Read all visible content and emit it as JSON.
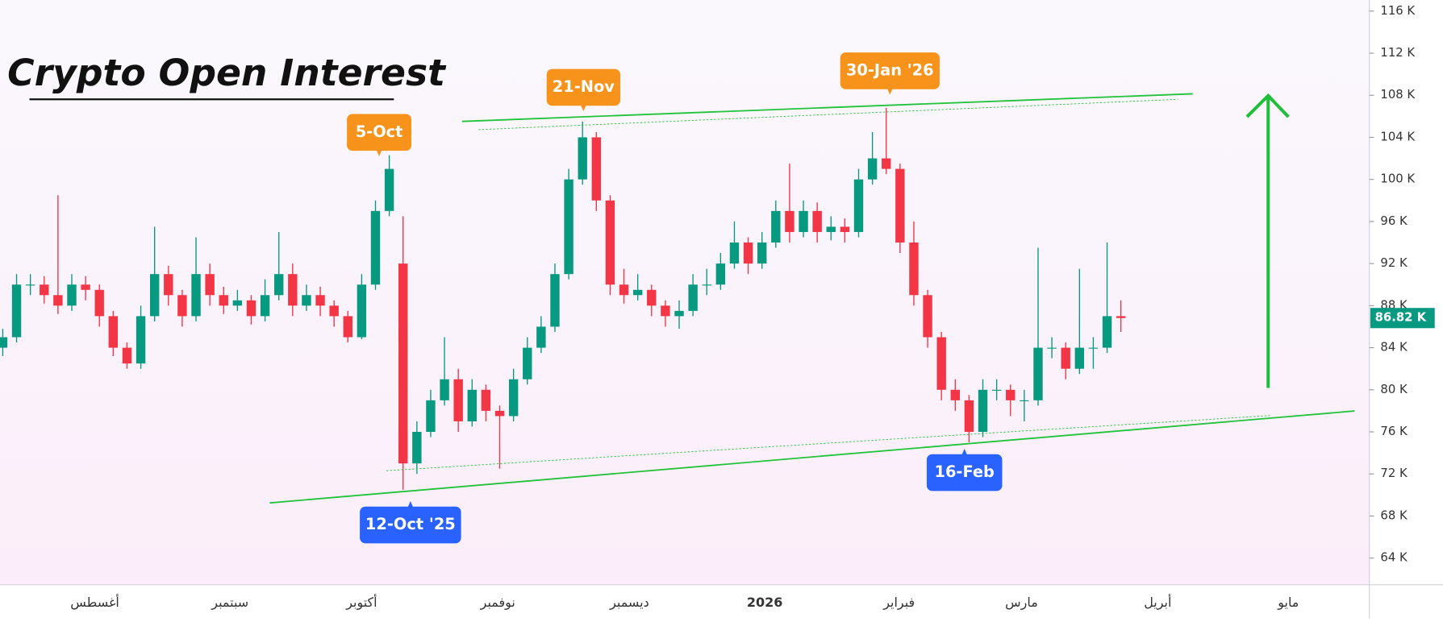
{
  "chart_data": {
    "type": "candlestick",
    "title": "Crypto Open Interest",
    "open": [
      84,
      85,
      90,
      90,
      89,
      88,
      90,
      89.5,
      87,
      84,
      82.5,
      87,
      91,
      89,
      87,
      91,
      89,
      88,
      88.5,
      87,
      89,
      91,
      88,
      89,
      88,
      87,
      85,
      90,
      97,
      92,
      73,
      76,
      79,
      81,
      77,
      80,
      78,
      77.5,
      81,
      84,
      86,
      91,
      100,
      104,
      98,
      90,
      89,
      89.5,
      88,
      87,
      87.5,
      90,
      90,
      92,
      94,
      92,
      94,
      97,
      95,
      97,
      95,
      95.5,
      95,
      100,
      102,
      101,
      94,
      89,
      85,
      80,
      79,
      76,
      80,
      80,
      79,
      79,
      84,
      84,
      82,
      84,
      84,
      87
    ],
    "high": [
      85.8,
      91,
      91,
      90.8,
      98.5,
      91,
      90.8,
      90,
      87.5,
      84.5,
      88,
      95.5,
      91.8,
      89.5,
      94.5,
      92,
      89.8,
      89.5,
      89,
      90.5,
      95,
      92,
      90,
      89.8,
      88.5,
      87.5,
      91,
      98,
      102.3,
      96.5,
      77,
      80,
      85,
      82,
      81,
      80.5,
      78.5,
      82,
      85,
      87,
      92,
      101,
      105.5,
      104.5,
      98.5,
      91.5,
      91,
      90,
      88.5,
      88.5,
      91,
      91.5,
      93,
      96,
      94.5,
      95,
      98,
      101.5,
      98,
      97.8,
      96.5,
      96.3,
      101,
      104.5,
      106.8,
      101.5,
      96,
      89.5,
      85.5,
      81,
      79.5,
      81,
      81,
      80.5,
      80,
      93.5,
      85,
      84.5,
      91.5,
      85,
      94,
      88.5
    ],
    "low": [
      83.2,
      84.5,
      89,
      88.2,
      87.2,
      87.5,
      88.5,
      86,
      83.2,
      82,
      82,
      86.5,
      88,
      86,
      86.5,
      88,
      87.2,
      87.5,
      86.2,
      86.5,
      88.5,
      87,
      87.5,
      87,
      86,
      84.5,
      84.8,
      89.5,
      96.5,
      70.5,
      72,
      75.5,
      78.5,
      76,
      76.5,
      77,
      72.5,
      77,
      80.5,
      83.5,
      85.5,
      90.5,
      99.5,
      97,
      89,
      88.2,
      88.5,
      87,
      86,
      85.8,
      87,
      89,
      89.5,
      91.5,
      91,
      91.5,
      93.5,
      94,
      94.5,
      94,
      94.2,
      94,
      94.5,
      99.5,
      100.5,
      93,
      88,
      84,
      79,
      78,
      75,
      75.5,
      79,
      77.5,
      77,
      78.5,
      83,
      81,
      81.5,
      82,
      83.5,
      85.5
    ],
    "close": [
      85,
      90,
      90,
      89,
      88,
      90,
      89.5,
      87,
      84,
      82.5,
      87,
      91,
      89,
      87,
      91,
      89,
      88,
      88.5,
      87,
      89,
      91,
      88,
      89,
      88,
      87,
      85,
      90,
      97,
      101,
      73,
      76,
      79,
      81,
      77,
      80,
      78,
      77.5,
      81,
      84,
      86,
      91,
      100,
      104,
      98,
      90,
      89,
      89.5,
      88,
      87,
      87.5,
      90,
      90,
      92,
      94,
      92,
      94,
      97,
      95,
      97,
      95,
      95.5,
      95,
      100,
      102,
      101,
      94,
      89,
      85,
      80,
      79,
      76,
      80,
      80,
      79,
      79,
      84,
      84,
      82,
      84,
      84,
      87,
      86.82
    ],
    "up_color": "#089981",
    "down_color": "#f23645",
    "x_labels": [
      "أغسطس",
      "سبتمبر",
      "أكتوبر",
      "نوفمبر",
      "ديسمبر",
      "2026",
      "فبراير",
      "مارس",
      "أبريل",
      "مايو"
    ],
    "ylim": [
      61.47,
      117.05
    ],
    "yticks": [
      {
        "value": 64,
        "label": "64 K"
      },
      {
        "value": 68,
        "label": "68 K"
      },
      {
        "value": 72,
        "label": "72 K"
      },
      {
        "value": 76,
        "label": "76 K"
      },
      {
        "value": 80,
        "label": "80 K"
      },
      {
        "value": 84,
        "label": "84 K"
      },
      {
        "value": 88,
        "label": "88 K"
      },
      {
        "value": 92,
        "label": "92 K"
      },
      {
        "value": 96,
        "label": "96 K"
      },
      {
        "value": 100,
        "label": "100 K"
      },
      {
        "value": 104,
        "label": "104 K"
      },
      {
        "value": 108,
        "label": "108 K"
      },
      {
        "value": 112,
        "label": "112 K"
      },
      {
        "value": 116,
        "label": "116 K"
      }
    ],
    "last_price": {
      "value": 86.82,
      "label": "86.82 K"
    },
    "annotations": [
      "5-Oct",
      "21-Nov",
      "30-Jan '26",
      "12-Oct '25",
      "16-Feb"
    ]
  }
}
